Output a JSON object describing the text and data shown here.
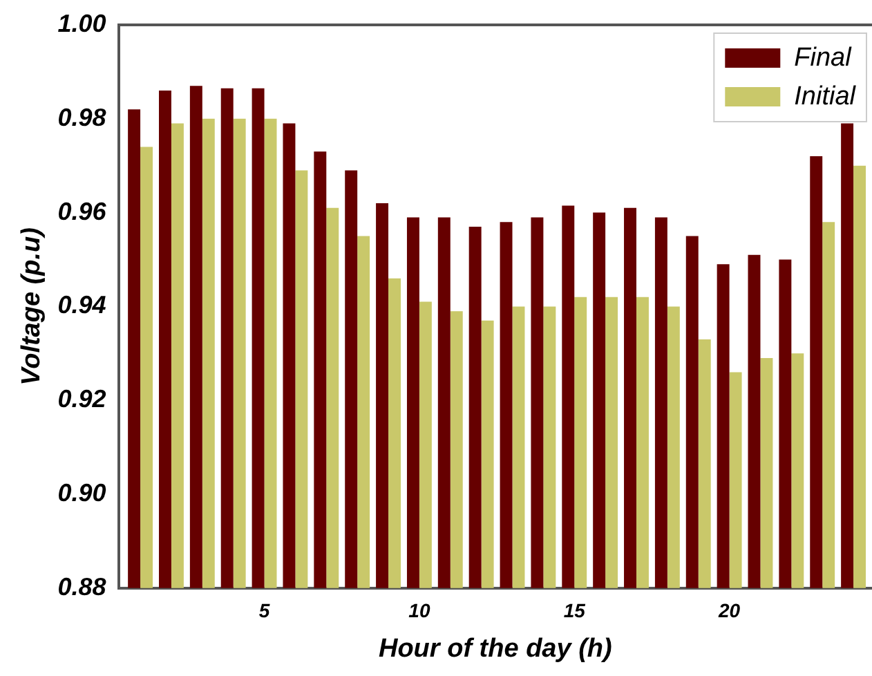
{
  "chart_data": {
    "type": "bar",
    "xlabel": "Hour of the day (h)",
    "ylabel": "Voltage (p.u)",
    "x": [
      1,
      2,
      3,
      4,
      5,
      6,
      7,
      8,
      9,
      10,
      11,
      12,
      13,
      14,
      15,
      16,
      17,
      18,
      19,
      20,
      21,
      22,
      23,
      24
    ],
    "series": [
      {
        "name": "Final",
        "color": "#660000",
        "values": [
          0.982,
          0.986,
          0.987,
          0.9865,
          0.9865,
          0.979,
          0.973,
          0.969,
          0.962,
          0.959,
          0.959,
          0.957,
          0.958,
          0.959,
          0.9615,
          0.96,
          0.961,
          0.959,
          0.955,
          0.949,
          0.951,
          0.95,
          0.972,
          0.979
        ]
      },
      {
        "name": "Initial",
        "color": "#c9c86a",
        "values": [
          0.974,
          0.979,
          0.98,
          0.98,
          0.98,
          0.969,
          0.961,
          0.955,
          0.946,
          0.941,
          0.939,
          0.937,
          0.94,
          0.94,
          0.942,
          0.942,
          0.942,
          0.94,
          0.933,
          0.926,
          0.929,
          0.93,
          0.958,
          0.97
        ]
      }
    ],
    "xlim": [
      0.3,
      24.6
    ],
    "xticks": [
      5,
      10,
      15,
      20
    ],
    "ylim": [
      0.88,
      1.0
    ],
    "yticks": [
      {
        "value": 0.88,
        "label": "0.88"
      },
      {
        "value": 0.9,
        "label": "0.90"
      },
      {
        "value": 0.92,
        "label": "0.92"
      },
      {
        "value": 0.94,
        "label": "0.94"
      },
      {
        "value": 0.96,
        "label": "0.96"
      },
      {
        "value": 0.98,
        "label": "0.98"
      },
      {
        "value": 1.0,
        "label": "1.00"
      }
    ],
    "grid": false,
    "legend": "top right"
  }
}
